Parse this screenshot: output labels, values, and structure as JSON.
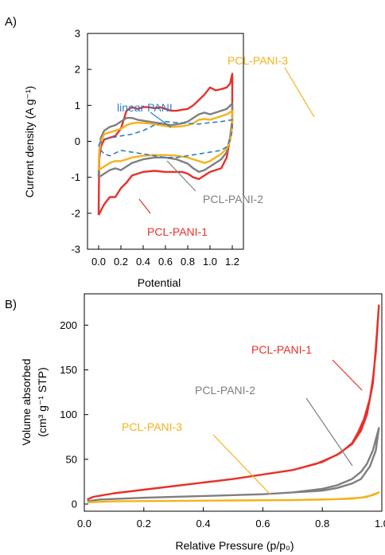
{
  "panels": [
    "A)",
    "B)"
  ],
  "chart_data": [
    {
      "type": "line",
      "panel": "A)",
      "xlabel": "Potential",
      "ylabel": "Current density (A g⁻¹)",
      "xlim": [
        -0.1,
        1.3
      ],
      "ylim": [
        -3,
        3
      ],
      "xticks": [
        "0.0",
        "0.2",
        "0.4",
        "0.6",
        "0.8",
        "1.0",
        "1.2"
      ],
      "yticks": [
        "-3",
        "-2",
        "-1",
        "0",
        "1",
        "2",
        "3"
      ],
      "grid": false,
      "legend": "none",
      "annotations": [
        {
          "text": "linear PANI",
          "series": "linear PANI"
        },
        {
          "text": "PCL-PANI-3",
          "series": "PCL-PANI-3"
        },
        {
          "text": "PCL-PANI-2",
          "series": "PCL-PANI-2"
        },
        {
          "text": "PCL-PANI-1",
          "series": "PCL-PANI-1"
        }
      ],
      "series": [
        {
          "name": "PCL-PANI-1",
          "color": "#e8302a",
          "dash": "solid",
          "points": [
            [
              0,
              -2.05
            ],
            [
              0.005,
              -0.5
            ],
            [
              0.02,
              -0.15
            ],
            [
              0.05,
              0.05
            ],
            [
              0.1,
              0.1
            ],
            [
              0.15,
              0.15
            ],
            [
              0.2,
              0.35
            ],
            [
              0.25,
              0.85
            ],
            [
              0.3,
              0.95
            ],
            [
              0.35,
              0.9
            ],
            [
              0.4,
              0.95
            ],
            [
              0.45,
              0.95
            ],
            [
              0.5,
              0.92
            ],
            [
              0.55,
              0.95
            ],
            [
              0.6,
              0.9
            ],
            [
              0.65,
              0.85
            ],
            [
              0.7,
              0.85
            ],
            [
              0.75,
              0.88
            ],
            [
              0.8,
              0.9
            ],
            [
              0.85,
              1.0
            ],
            [
              0.9,
              1.15
            ],
            [
              0.95,
              1.3
            ],
            [
              1.0,
              1.5
            ],
            [
              1.05,
              1.42
            ],
            [
              1.1,
              1.45
            ],
            [
              1.15,
              1.5
            ],
            [
              1.18,
              1.6
            ],
            [
              1.2,
              1.88
            ],
            [
              1.2,
              0.6
            ],
            [
              1.18,
              0.1
            ],
            [
              1.15,
              -0.45
            ],
            [
              1.1,
              -0.75
            ],
            [
              1.05,
              -0.8
            ],
            [
              1.0,
              -0.85
            ],
            [
              0.95,
              -0.95
            ],
            [
              0.9,
              -1.05
            ],
            [
              0.85,
              -1.0
            ],
            [
              0.8,
              -0.9
            ],
            [
              0.75,
              -0.85
            ],
            [
              0.7,
              -0.85
            ],
            [
              0.6,
              -0.85
            ],
            [
              0.5,
              -0.82
            ],
            [
              0.4,
              -0.85
            ],
            [
              0.3,
              -0.95
            ],
            [
              0.25,
              -1.15
            ],
            [
              0.2,
              -1.3
            ],
            [
              0.15,
              -1.55
            ],
            [
              0.1,
              -1.55
            ],
            [
              0.05,
              -1.75
            ],
            [
              0.0,
              -2.05
            ]
          ]
        },
        {
          "name": "PCL-PANI-2",
          "color": "#7f7f7f",
          "dash": "solid",
          "points": [
            [
              0,
              -1.0
            ],
            [
              0.005,
              -0.3
            ],
            [
              0.02,
              0.1
            ],
            [
              0.05,
              0.3
            ],
            [
              0.1,
              0.4
            ],
            [
              0.15,
              0.45
            ],
            [
              0.2,
              0.55
            ],
            [
              0.25,
              0.65
            ],
            [
              0.3,
              0.65
            ],
            [
              0.35,
              0.6
            ],
            [
              0.45,
              0.55
            ],
            [
              0.55,
              0.5
            ],
            [
              0.65,
              0.45
            ],
            [
              0.75,
              0.5
            ],
            [
              0.8,
              0.55
            ],
            [
              0.85,
              0.65
            ],
            [
              0.9,
              0.75
            ],
            [
              0.95,
              0.8
            ],
            [
              1.0,
              0.75
            ],
            [
              1.05,
              0.8
            ],
            [
              1.1,
              0.85
            ],
            [
              1.15,
              0.9
            ],
            [
              1.2,
              1.05
            ],
            [
              1.2,
              0.5
            ],
            [
              1.18,
              0.1
            ],
            [
              1.15,
              -0.3
            ],
            [
              1.1,
              -0.5
            ],
            [
              1.05,
              -0.6
            ],
            [
              1.0,
              -0.7
            ],
            [
              0.95,
              -0.8
            ],
            [
              0.9,
              -0.85
            ],
            [
              0.85,
              -0.75
            ],
            [
              0.8,
              -0.62
            ],
            [
              0.7,
              -0.5
            ],
            [
              0.6,
              -0.45
            ],
            [
              0.5,
              -0.45
            ],
            [
              0.4,
              -0.5
            ],
            [
              0.3,
              -0.6
            ],
            [
              0.25,
              -0.7
            ],
            [
              0.2,
              -0.8
            ],
            [
              0.15,
              -0.75
            ],
            [
              0.1,
              -0.8
            ],
            [
              0.05,
              -0.9
            ],
            [
              0.0,
              -1.0
            ]
          ]
        },
        {
          "name": "PCL-PANI-3",
          "color": "#f5b21c",
          "dash": "solid",
          "points": [
            [
              0,
              -0.8
            ],
            [
              0.005,
              -0.3
            ],
            [
              0.02,
              0.0
            ],
            [
              0.05,
              0.2
            ],
            [
              0.1,
              0.25
            ],
            [
              0.15,
              0.3
            ],
            [
              0.2,
              0.35
            ],
            [
              0.25,
              0.45
            ],
            [
              0.3,
              0.5
            ],
            [
              0.35,
              0.52
            ],
            [
              0.45,
              0.5
            ],
            [
              0.55,
              0.45
            ],
            [
              0.65,
              0.4
            ],
            [
              0.75,
              0.42
            ],
            [
              0.8,
              0.45
            ],
            [
              0.85,
              0.5
            ],
            [
              0.9,
              0.6
            ],
            [
              0.95,
              0.62
            ],
            [
              1.0,
              0.6
            ],
            [
              1.05,
              0.65
            ],
            [
              1.1,
              0.7
            ],
            [
              1.15,
              0.75
            ],
            [
              1.2,
              0.85
            ],
            [
              1.2,
              0.4
            ],
            [
              1.18,
              0.0
            ],
            [
              1.15,
              -0.2
            ],
            [
              1.1,
              -0.35
            ],
            [
              1.05,
              -0.45
            ],
            [
              1.0,
              -0.55
            ],
            [
              0.95,
              -0.6
            ],
            [
              0.9,
              -0.55
            ],
            [
              0.85,
              -0.5
            ],
            [
              0.8,
              -0.45
            ],
            [
              0.7,
              -0.4
            ],
            [
              0.6,
              -0.38
            ],
            [
              0.5,
              -0.38
            ],
            [
              0.4,
              -0.4
            ],
            [
              0.3,
              -0.45
            ],
            [
              0.25,
              -0.5
            ],
            [
              0.2,
              -0.55
            ],
            [
              0.15,
              -0.55
            ],
            [
              0.1,
              -0.6
            ],
            [
              0.05,
              -0.7
            ],
            [
              0.0,
              -0.8
            ]
          ]
        },
        {
          "name": "linear PANI",
          "color": "#2e7dc1",
          "dash": "dashed",
          "points": [
            [
              0,
              -0.1
            ],
            [
              0.02,
              -0.02
            ],
            [
              0.05,
              0.05
            ],
            [
              0.1,
              0.1
            ],
            [
              0.15,
              0.12
            ],
            [
              0.2,
              0.15
            ],
            [
              0.3,
              0.2
            ],
            [
              0.4,
              0.3
            ],
            [
              0.5,
              0.45
            ],
            [
              0.6,
              0.55
            ],
            [
              0.7,
              0.52
            ],
            [
              0.8,
              0.5
            ],
            [
              0.9,
              0.48
            ],
            [
              1.0,
              0.52
            ],
            [
              1.1,
              0.55
            ],
            [
              1.2,
              0.6
            ],
            [
              1.2,
              0.3
            ],
            [
              1.18,
              0.05
            ],
            [
              1.15,
              -0.15
            ],
            [
              1.1,
              -0.25
            ],
            [
              1.0,
              -0.3
            ],
            [
              0.9,
              -0.35
            ],
            [
              0.8,
              -0.4
            ],
            [
              0.7,
              -0.45
            ],
            [
              0.6,
              -0.45
            ],
            [
              0.5,
              -0.4
            ],
            [
              0.4,
              -0.35
            ],
            [
              0.3,
              -0.3
            ],
            [
              0.2,
              -0.25
            ],
            [
              0.1,
              -0.4
            ],
            [
              0.05,
              -0.35
            ],
            [
              0.02,
              -0.25
            ],
            [
              0.0,
              -0.1
            ]
          ]
        }
      ]
    },
    {
      "type": "line",
      "panel": "B)",
      "xlabel": "Relative Pressure (p/p₀)",
      "ylabel_line1": "Volume absorbed",
      "ylabel_line2": "(cm³ g⁻¹ STP)",
      "xlim": [
        0,
        1.0
      ],
      "ylim": [
        -8,
        235
      ],
      "xticks": [
        "0.0",
        "0.2",
        "0.4",
        "0.6",
        "0.8",
        "1.0"
      ],
      "yticks": [
        "0",
        "50",
        "100",
        "150",
        "200"
      ],
      "grid": false,
      "legend": "none",
      "annotations": [
        {
          "text": "PCL-PANI-1",
          "series": "PCL-PANI-1"
        },
        {
          "text": "PCL-PANI-2",
          "series": "PCL-PANI-2"
        },
        {
          "text": "PCL-PANI-3",
          "series": "PCL-PANI-3"
        }
      ],
      "series": [
        {
          "name": "PCL-PANI-1",
          "color": "#e8302a",
          "points": [
            [
              0.01,
              5
            ],
            [
              0.03,
              8
            ],
            [
              0.1,
              12
            ],
            [
              0.2,
              16
            ],
            [
              0.3,
              20
            ],
            [
              0.4,
              24
            ],
            [
              0.5,
              28
            ],
            [
              0.6,
              33
            ],
            [
              0.7,
              38
            ],
            [
              0.78,
              45
            ],
            [
              0.85,
              55
            ],
            [
              0.9,
              67
            ],
            [
              0.93,
              82
            ],
            [
              0.95,
              100
            ],
            [
              0.97,
              135
            ],
            [
              0.98,
              175
            ],
            [
              0.99,
              222
            ],
            [
              0.98,
              170
            ],
            [
              0.97,
              140
            ],
            [
              0.96,
              118
            ],
            [
              0.94,
              95
            ],
            [
              0.92,
              80
            ],
            [
              0.9,
              68
            ],
            [
              0.86,
              57
            ],
            [
              0.8,
              47
            ],
            [
              0.7,
              38
            ],
            [
              0.6,
              33
            ]
          ]
        },
        {
          "name": "PCL-PANI-2",
          "color": "#7f7f7f",
          "points": [
            [
              0.01,
              3
            ],
            [
              0.05,
              5
            ],
            [
              0.2,
              7
            ],
            [
              0.4,
              9
            ],
            [
              0.6,
              11
            ],
            [
              0.7,
              13
            ],
            [
              0.8,
              17
            ],
            [
              0.85,
              21
            ],
            [
              0.9,
              28
            ],
            [
              0.93,
              36
            ],
            [
              0.95,
              45
            ],
            [
              0.97,
              60
            ],
            [
              0.99,
              85
            ],
            [
              0.98,
              60
            ],
            [
              0.96,
              42
            ],
            [
              0.93,
              28
            ],
            [
              0.9,
              23
            ],
            [
              0.85,
              18
            ],
            [
              0.8,
              15
            ],
            [
              0.7,
              13
            ],
            [
              0.6,
              11
            ]
          ]
        },
        {
          "name": "PCL-PANI-3",
          "color": "#f5b21c",
          "points": [
            [
              0.01,
              2
            ],
            [
              0.1,
              3
            ],
            [
              0.3,
              3.5
            ],
            [
              0.5,
              4
            ],
            [
              0.7,
              4.5
            ],
            [
              0.8,
              5
            ],
            [
              0.9,
              6
            ],
            [
              0.95,
              8
            ],
            [
              0.99,
              13
            ],
            [
              0.97,
              10
            ],
            [
              0.93,
              7
            ],
            [
              0.85,
              5.5
            ],
            [
              0.7,
              4.5
            ]
          ]
        }
      ]
    }
  ]
}
